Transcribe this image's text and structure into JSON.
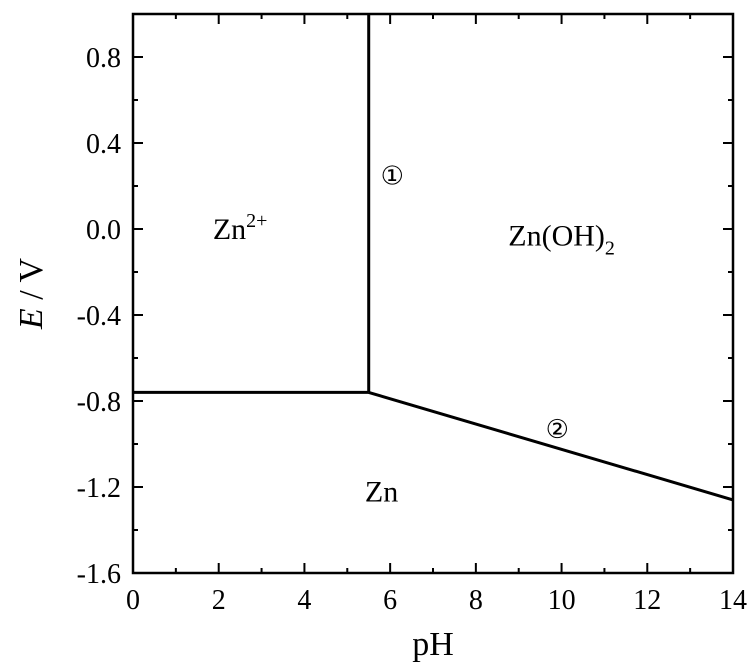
{
  "chart_data": {
    "type": "line",
    "xlabel": "pH",
    "ylabel_italic": "E",
    "ylabel_rest": " / V",
    "xlim": [
      0,
      14
    ],
    "ylim": [
      -1.6,
      1.0
    ],
    "x_ticks": [
      0,
      2,
      4,
      6,
      8,
      10,
      12,
      14
    ],
    "x_tick_labels": [
      "0",
      "2",
      "4",
      "6",
      "8",
      "10",
      "12",
      "14"
    ],
    "y_ticks": [
      0.8,
      0.4,
      0.0,
      -0.4,
      -0.8,
      -1.2,
      -1.6
    ],
    "y_tick_labels": [
      "0.8",
      "0.4",
      "0.0",
      "-0.4",
      "-0.8",
      "-1.2",
      "-1.6"
    ],
    "grid": false,
    "series": [
      {
        "points": [
          [
            0,
            -0.76
          ],
          [
            5.5,
            -0.76
          ]
        ]
      },
      {
        "points": [
          [
            5.5,
            -0.76
          ],
          [
            5.5,
            1.0
          ]
        ]
      },
      {
        "points": [
          [
            5.5,
            -0.76
          ],
          [
            14,
            -1.26
          ]
        ]
      }
    ],
    "regions": [
      {
        "base": "Zn",
        "sup": "2+",
        "sub": "",
        "x": 2.5,
        "y": 0.0
      },
      {
        "base": "Zn(OH)",
        "sup": "",
        "sub": "2",
        "x": 10.0,
        "y": -0.03
      },
      {
        "base": "Zn",
        "sup": "",
        "sub": "",
        "x": 5.8,
        "y": -1.22
      }
    ],
    "line_markers": [
      {
        "text": "①",
        "x": 6.05,
        "y": 0.25
      },
      {
        "text": "②",
        "x": 9.9,
        "y": -0.93
      }
    ]
  }
}
